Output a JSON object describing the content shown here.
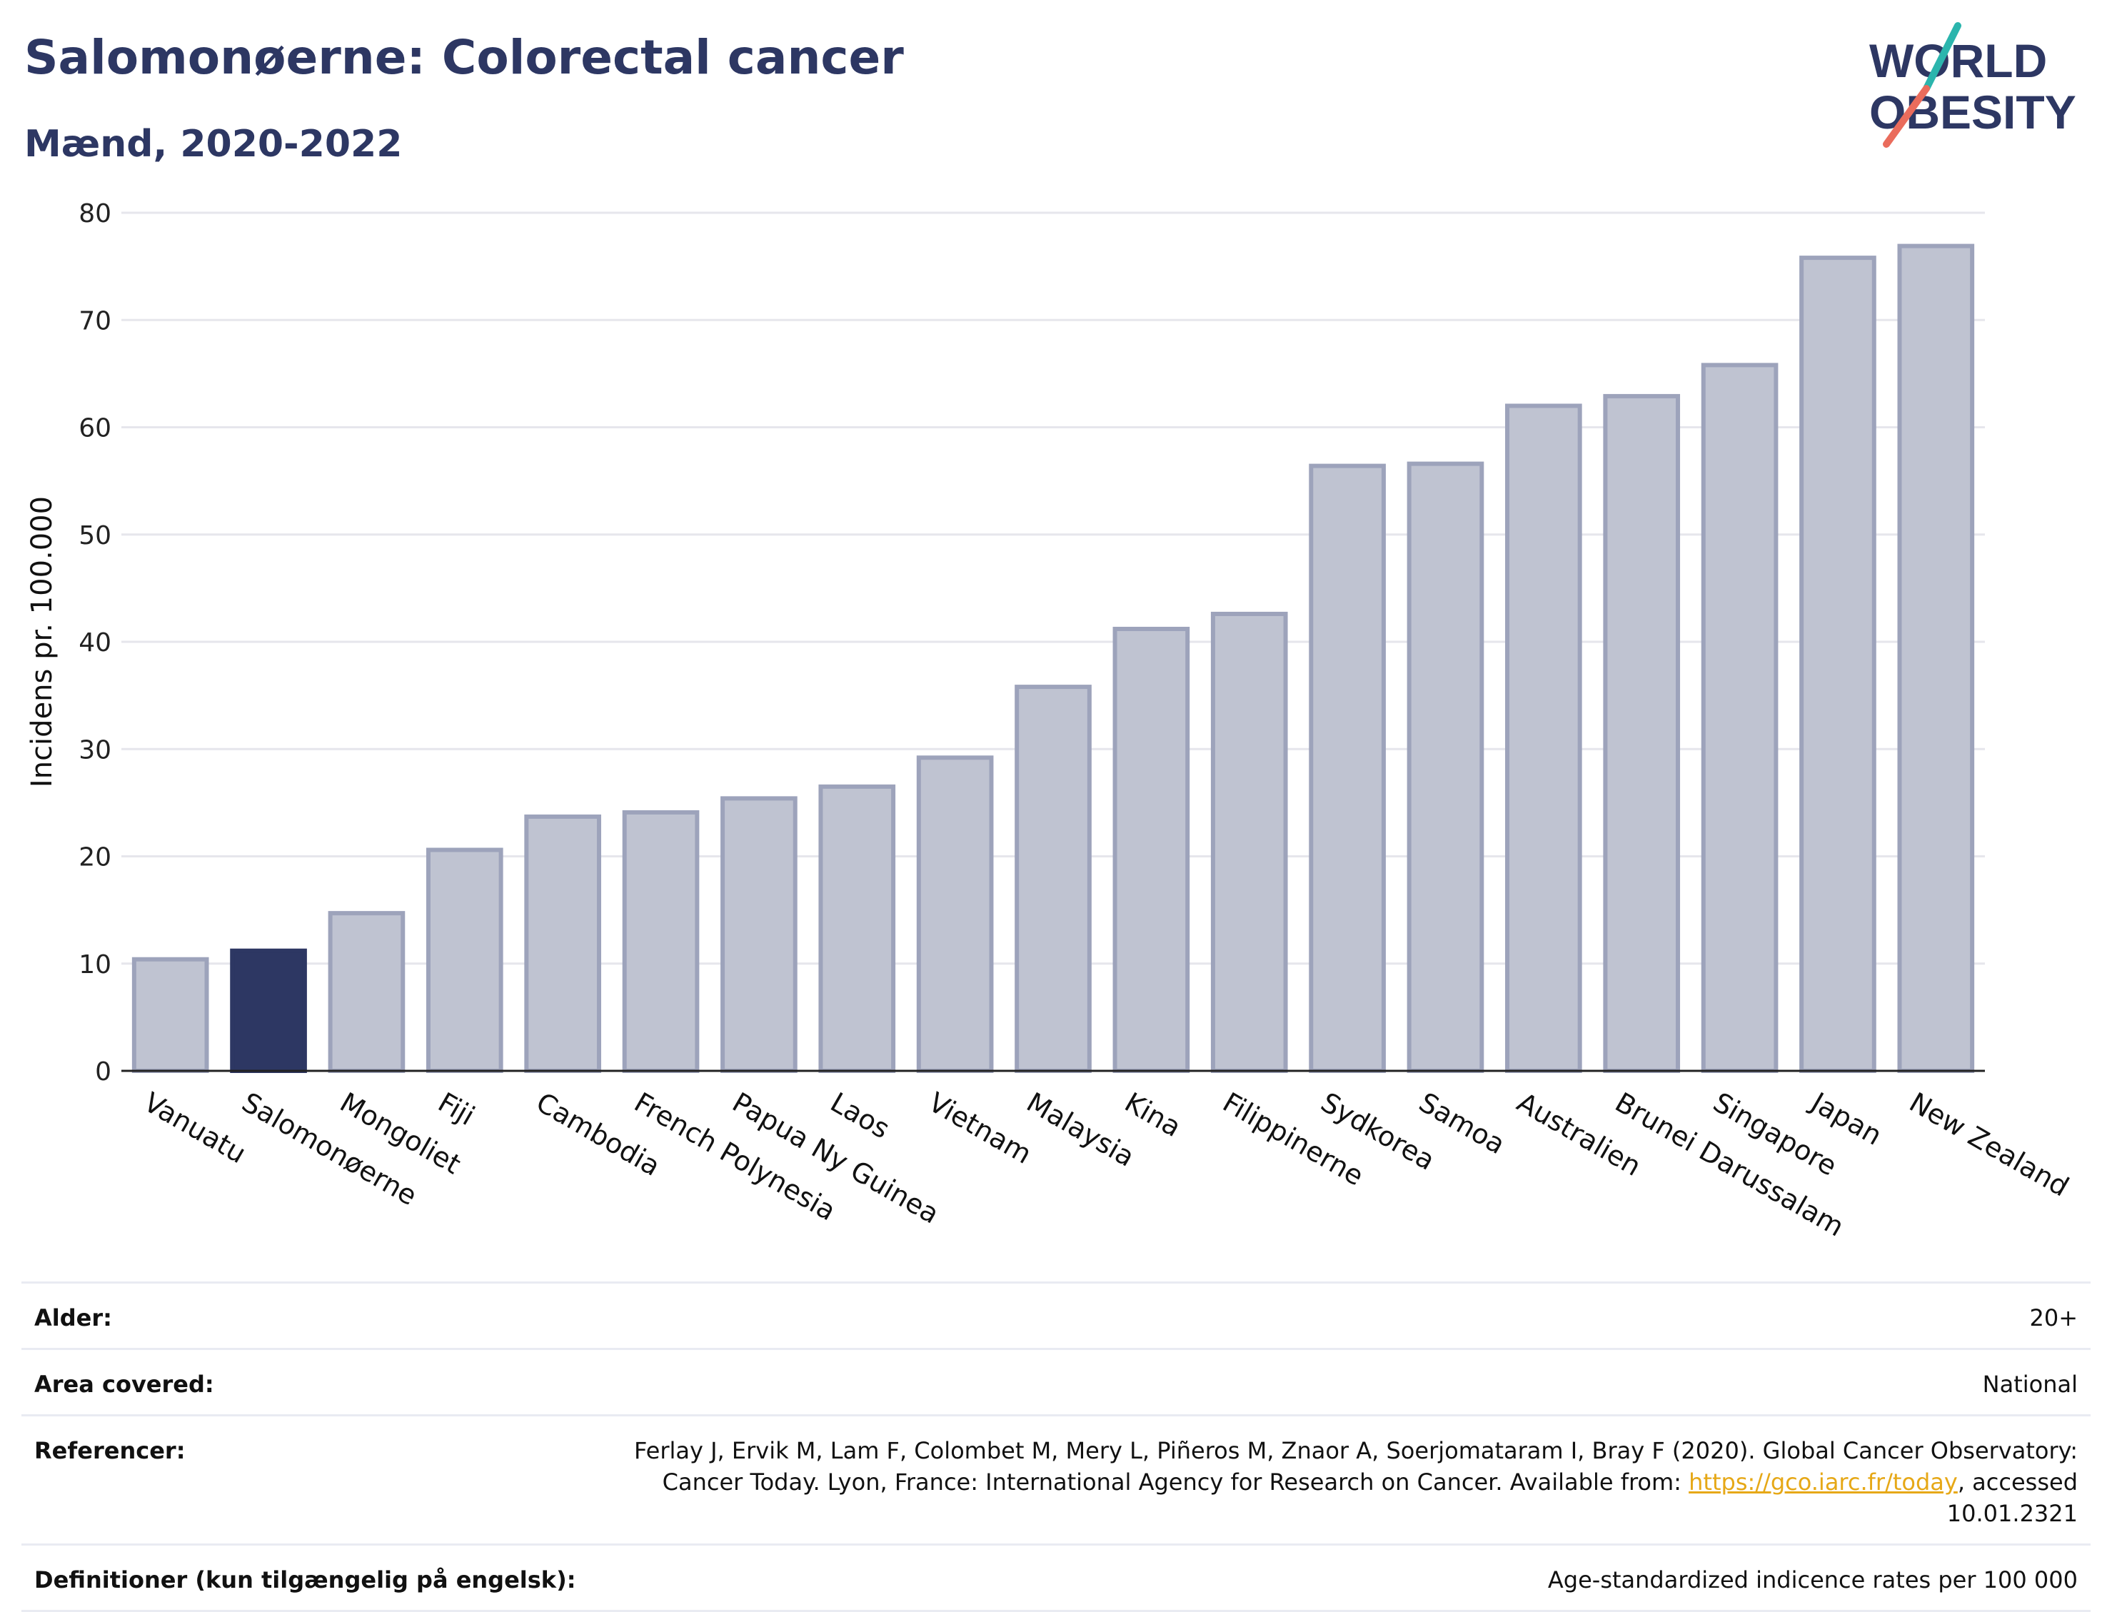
{
  "header": {
    "title": "Salomonøerne: Colorectal cancer",
    "subtitle": "Mænd, 2020-2022"
  },
  "logo": {
    "line1": "WORLD",
    "line2": "OBESITY"
  },
  "colors": {
    "highlight": "#2d3763",
    "bar_fill": "#bfc3d1",
    "bar_stroke": "#9da3bb",
    "grid": "#e6e6ec",
    "axis": "#222222"
  },
  "chart_data": {
    "type": "bar",
    "ylabel": "Incidens pr. 100.000",
    "ylim": [
      0,
      80
    ],
    "yticks": [
      0,
      10,
      20,
      30,
      40,
      50,
      60,
      70,
      80
    ],
    "grid": true,
    "highlight": "Salomonøerne",
    "categories": [
      "Vanuatu",
      "Salomonøerne",
      "Mongoliet",
      "Fiji",
      "Cambodia",
      "French Polynesia",
      "Papua Ny Guinea",
      "Laos",
      "Vietnam",
      "Malaysia",
      "Kina",
      "Filippinerne",
      "Sydkorea",
      "Samoa",
      "Australien",
      "Brunei Darussalam",
      "Singapore",
      "Japan",
      "New Zealand"
    ],
    "values": [
      10.4,
      11.2,
      14.7,
      20.6,
      23.7,
      24.1,
      25.4,
      26.5,
      29.2,
      35.8,
      41.2,
      42.6,
      56.4,
      56.6,
      62.0,
      62.9,
      65.8,
      75.8,
      76.9
    ]
  },
  "meta": [
    {
      "label": "Alder:",
      "value": "20+"
    },
    {
      "label": "Area covered:",
      "value": "National"
    },
    {
      "label": "Referencer:",
      "value_before": "Ferlay J, Ervik M, Lam F, Colombet M, Mery L, Piñeros M, Znaor A, Soerjomataram I, Bray F (2020). Global Cancer Observatory: Cancer Today. Lyon, France: International Agency for Research on Cancer. Available from: ",
      "link": "https://gco.iarc.fr/today",
      "value_after": ", accessed 10.01.2321"
    },
    {
      "label": "Definitioner (kun tilgængelig på engelsk):",
      "value": "Age-standardized indicence rates per 100 000"
    }
  ]
}
